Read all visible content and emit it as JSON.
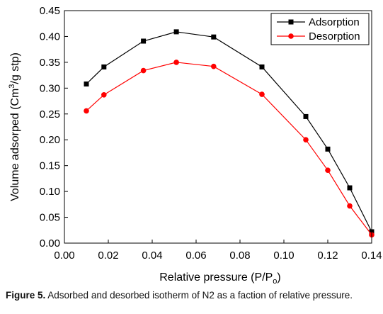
{
  "chart_data": {
    "type": "line",
    "x_title": "Relative pressure (P/P",
    "x_title_sub": "o",
    "x_title_end": ")",
    "y_title": "Volume adsorped (Cm",
    "y_title_sup": "3",
    "y_title_end": "/g stp)",
    "xlim": [
      0.0,
      0.14
    ],
    "ylim": [
      0.0,
      0.45
    ],
    "x_ticks": [
      "0.00",
      "0.02",
      "0.04",
      "0.06",
      "0.08",
      "0.10",
      "0.12",
      "0.14"
    ],
    "y_ticks": [
      "0.00",
      "0.05",
      "0.10",
      "0.15",
      "0.20",
      "0.25",
      "0.30",
      "0.35",
      "0.40",
      "0.45"
    ],
    "legend_position": "top-right",
    "series": [
      {
        "name": "Adsorption",
        "color": "#000000",
        "marker": "square",
        "x": [
          0.01,
          0.018,
          0.036,
          0.051,
          0.068,
          0.09,
          0.11,
          0.12,
          0.13,
          0.14
        ],
        "y": [
          0.308,
          0.341,
          0.391,
          0.409,
          0.399,
          0.341,
          0.245,
          0.182,
          0.107,
          0.022
        ]
      },
      {
        "name": "Desorption",
        "color": "#ff0000",
        "marker": "circle",
        "x": [
          0.01,
          0.018,
          0.036,
          0.051,
          0.068,
          0.09,
          0.11,
          0.12,
          0.13,
          0.14
        ],
        "y": [
          0.256,
          0.287,
          0.334,
          0.35,
          0.342,
          0.288,
          0.2,
          0.141,
          0.072,
          0.016
        ]
      }
    ]
  },
  "caption": {
    "label": "Figure 5.",
    "text": " Adsorbed and desorbed isotherm of N2 as a faction of relative pressure."
  }
}
